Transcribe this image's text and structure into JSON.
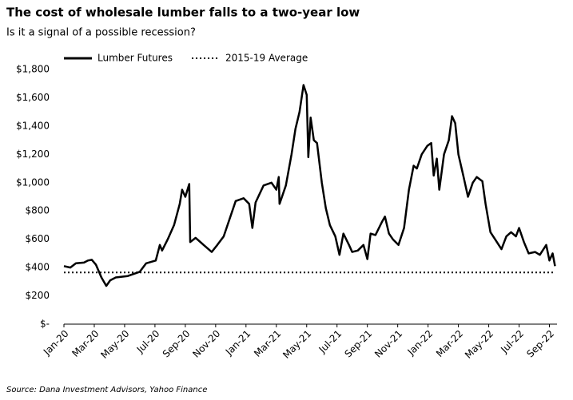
{
  "chart_data": {
    "type": "line",
    "title": "The cost of wholesale lumber falls to a two-year low",
    "subtitle": "Is it a signal of a possible recession?",
    "source": "Source: Dana Investment Advisors, Yahoo Finance",
    "legend": "top-left",
    "xlim": [
      0,
      32.5
    ],
    "xticks": [
      {
        "value": 0,
        "label": "Jan-20"
      },
      {
        "value": 2,
        "label": "Mar-20"
      },
      {
        "value": 4,
        "label": "May-20"
      },
      {
        "value": 6,
        "label": "Jul-20"
      },
      {
        "value": 8,
        "label": "Sep-20"
      },
      {
        "value": 10,
        "label": "Nov-20"
      },
      {
        "value": 12,
        "label": "Jan-21"
      },
      {
        "value": 14,
        "label": "Mar-21"
      },
      {
        "value": 16,
        "label": "May-21"
      },
      {
        "value": 18,
        "label": "Jul-21"
      },
      {
        "value": 20,
        "label": "Sep-21"
      },
      {
        "value": 22,
        "label": "Nov-21"
      },
      {
        "value": 24,
        "label": "Jan-22"
      },
      {
        "value": 26,
        "label": "Mar-22"
      },
      {
        "value": 28,
        "label": "May-22"
      },
      {
        "value": 30,
        "label": "Jul-22"
      },
      {
        "value": 32,
        "label": "Sep-22"
      }
    ],
    "ylim": [
      0,
      1800
    ],
    "yticks": [
      {
        "value": 0,
        "label": "$-"
      },
      {
        "value": 200,
        "label": "$200"
      },
      {
        "value": 400,
        "label": "$400"
      },
      {
        "value": 600,
        "label": "$600"
      },
      {
        "value": 800,
        "label": "$800"
      },
      {
        "value": 1000,
        "label": "$1,000"
      },
      {
        "value": 1200,
        "label": "$1,200"
      },
      {
        "value": 1400,
        "label": "$1,400"
      },
      {
        "value": 1600,
        "label": "$1,600"
      },
      {
        "value": 1800,
        "label": "$1,800"
      }
    ],
    "grid": false,
    "series": [
      {
        "name": "Lumber Futures",
        "color": "#000000",
        "style": "solid",
        "x": [
          0,
          0.42,
          0.79,
          1.32,
          1.58,
          1.84,
          2.11,
          2.47,
          2.79,
          3.05,
          3.42,
          4.21,
          5.0,
          5.42,
          6.05,
          6.32,
          6.47,
          6.84,
          7.26,
          7.63,
          7.79,
          8.0,
          8.26,
          8.32,
          8.68,
          9.21,
          9.74,
          10.11,
          10.53,
          11.32,
          11.84,
          12.21,
          12.42,
          12.63,
          13.16,
          13.68,
          14.0,
          14.16,
          14.21,
          14.63,
          15.0,
          15.26,
          15.53,
          15.79,
          16.0,
          16.11,
          16.26,
          16.47,
          16.68,
          17.0,
          17.26,
          17.53,
          17.89,
          18.16,
          18.42,
          18.79,
          19.0,
          19.37,
          19.74,
          20.0,
          20.21,
          20.53,
          20.95,
          21.16,
          21.42,
          21.68,
          22.05,
          22.42,
          22.74,
          23.05,
          23.26,
          23.58,
          23.95,
          24.21,
          24.37,
          24.58,
          24.74,
          25.05,
          25.37,
          25.58,
          25.79,
          26.0,
          26.32,
          26.63,
          26.95,
          27.21,
          27.58,
          27.79,
          28.11,
          28.42,
          28.84,
          29.16,
          29.47,
          29.79,
          30.0,
          30.32,
          30.63,
          31.05,
          31.37,
          31.79,
          32.0,
          32.21,
          32.37
        ],
        "values": [
          410,
          400,
          430,
          435,
          450,
          455,
          420,
          330,
          270,
          310,
          330,
          340,
          370,
          430,
          450,
          560,
          520,
          600,
          700,
          850,
          950,
          900,
          990,
          580,
          610,
          560,
          510,
          560,
          620,
          870,
          890,
          850,
          680,
          860,
          980,
          1000,
          950,
          1040,
          850,
          980,
          1200,
          1380,
          1500,
          1690,
          1620,
          1180,
          1460,
          1300,
          1280,
          1000,
          820,
          700,
          620,
          490,
          640,
          560,
          510,
          520,
          560,
          460,
          640,
          630,
          720,
          760,
          640,
          600,
          560,
          680,
          950,
          1120,
          1100,
          1200,
          1260,
          1280,
          1050,
          1170,
          950,
          1200,
          1300,
          1470,
          1420,
          1200,
          1050,
          900,
          1000,
          1040,
          1010,
          850,
          650,
          600,
          530,
          620,
          650,
          620,
          680,
          580,
          500,
          510,
          490,
          560,
          450,
          500,
          410
        ]
      },
      {
        "name": "2015-19 Average",
        "color": "#000000",
        "style": "dotted",
        "x": [
          0,
          32.37
        ],
        "values": [
          365,
          365
        ]
      }
    ]
  }
}
